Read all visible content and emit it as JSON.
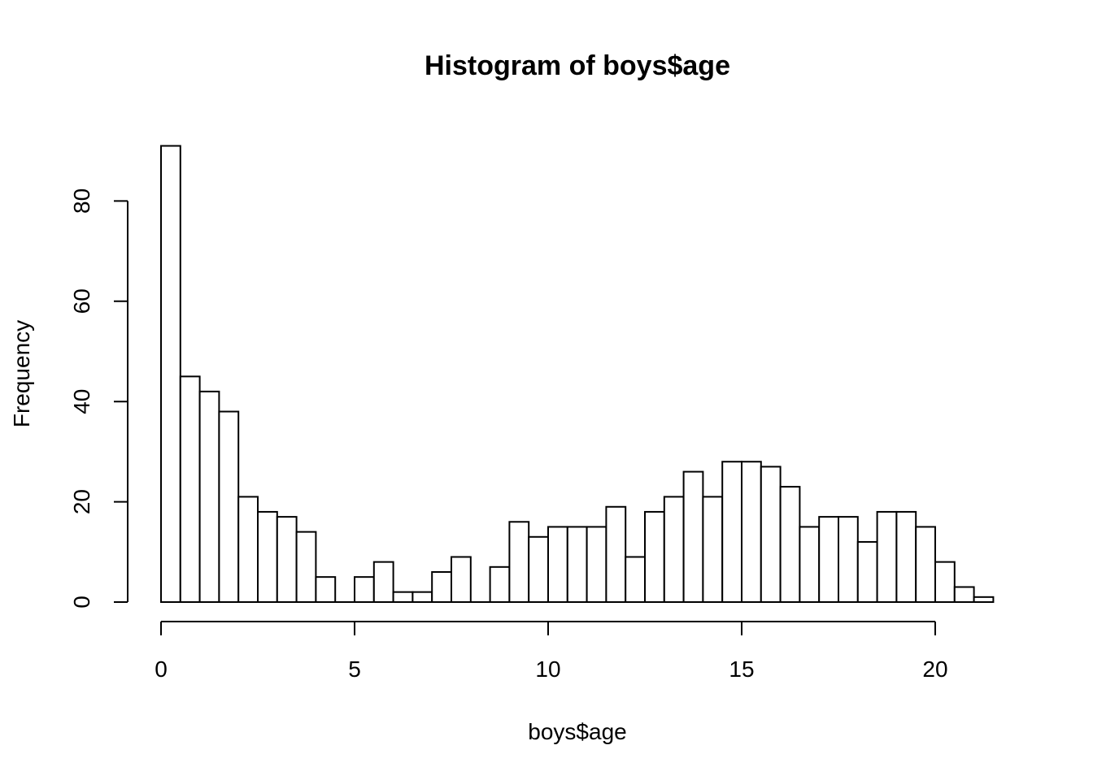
{
  "chart_data": {
    "type": "bar",
    "title": "Histogram of boys$age",
    "xlabel": "boys$age",
    "ylabel": "Frequency",
    "bin_width": 0.5,
    "bin_start": 0,
    "values": [
      91,
      45,
      42,
      38,
      21,
      18,
      17,
      14,
      5,
      0,
      5,
      8,
      2,
      2,
      6,
      9,
      0,
      7,
      16,
      13,
      15,
      15,
      15,
      19,
      9,
      18,
      21,
      26,
      21,
      28,
      28,
      27,
      23,
      15,
      17,
      17,
      12,
      18,
      18,
      15,
      8,
      3,
      1
    ],
    "xlim": [
      0,
      21.5
    ],
    "ylim": [
      0,
      91
    ],
    "x_ticks": [
      0,
      5,
      10,
      15,
      20
    ],
    "y_ticks": [
      0,
      20,
      40,
      60,
      80
    ],
    "grid": false,
    "legend": "none"
  }
}
